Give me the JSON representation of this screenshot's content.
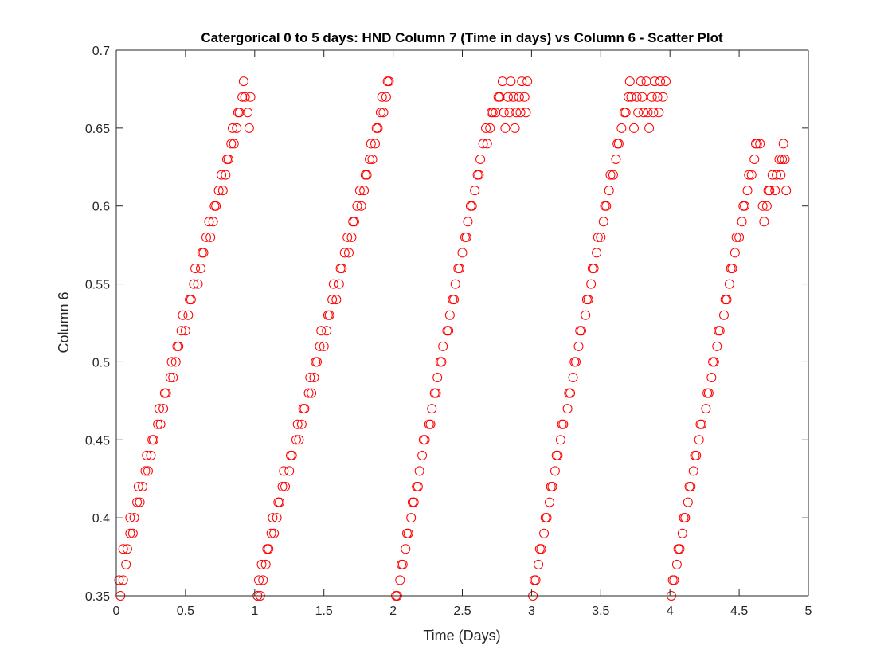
{
  "chart_data": {
    "type": "scatter",
    "title": "Catergorical 0 to 5 days: HND Column 7 (Time in days) vs Column 6 - Scatter Plot",
    "xlabel": "Time (Days)",
    "ylabel": "Column 6",
    "xlim": [
      0,
      5
    ],
    "ylim": [
      0.35,
      0.7
    ],
    "xticks": [
      0,
      0.5,
      1,
      1.5,
      2,
      2.5,
      3,
      3.5,
      4,
      4.5,
      5
    ],
    "xtick_labels": [
      "0",
      "0.5",
      "1",
      "1.5",
      "2",
      "2.5",
      "3",
      "3.5",
      "4",
      "4.5",
      "5"
    ],
    "yticks": [
      0.35,
      0.4,
      0.45,
      0.5,
      0.55,
      0.6,
      0.65,
      0.7
    ],
    "ytick_labels": [
      "0.35",
      "0.4",
      "0.45",
      "0.5",
      "0.55",
      "0.6",
      "0.65",
      "0.7"
    ],
    "grid": false,
    "marker": "open-circle",
    "marker_color": "#ff0000",
    "axis_color": "#262626",
    "series": [
      {
        "x": [
          0.03,
          0.02,
          0.05,
          0.07,
          0.05,
          0.08,
          0.1,
          0.12,
          0.1,
          0.13,
          0.15,
          0.17,
          0.16,
          0.19,
          0.21,
          0.23,
          0.22,
          0.25,
          0.27,
          0.26,
          0.3,
          0.32,
          0.31,
          0.34,
          0.36,
          0.35,
          0.39,
          0.41,
          0.4,
          0.43,
          0.45,
          0.44,
          0.47,
          0.5,
          0.48,
          0.52,
          0.54,
          0.53,
          0.56,
          0.59,
          0.57,
          0.61,
          0.63,
          0.62,
          0.65,
          0.68,
          0.67,
          0.7,
          0.72,
          0.71,
          0.74,
          0.77,
          0.76,
          0.79,
          0.81,
          0.8,
          0.83,
          0.85,
          0.84,
          0.87,
          0.89,
          0.88,
          0.91,
          0.93,
          0.92,
          0.95,
          0.97,
          0.96
        ],
        "y": [
          0.35,
          0.36,
          0.36,
          0.37,
          0.38,
          0.38,
          0.39,
          0.39,
          0.4,
          0.4,
          0.41,
          0.41,
          0.42,
          0.42,
          0.43,
          0.43,
          0.44,
          0.44,
          0.45,
          0.45,
          0.46,
          0.46,
          0.47,
          0.47,
          0.48,
          0.48,
          0.49,
          0.49,
          0.5,
          0.5,
          0.51,
          0.51,
          0.52,
          0.52,
          0.53,
          0.53,
          0.54,
          0.54,
          0.55,
          0.55,
          0.56,
          0.56,
          0.57,
          0.57,
          0.58,
          0.58,
          0.59,
          0.59,
          0.6,
          0.6,
          0.61,
          0.61,
          0.62,
          0.62,
          0.63,
          0.63,
          0.64,
          0.64,
          0.65,
          0.65,
          0.66,
          0.66,
          0.67,
          0.67,
          0.68,
          0.66,
          0.67,
          0.65
        ]
      },
      {
        "x": [
          1.02,
          1.04,
          1.03,
          1.06,
          1.05,
          1.08,
          1.1,
          1.09,
          1.12,
          1.14,
          1.13,
          1.16,
          1.18,
          1.17,
          1.2,
          1.22,
          1.21,
          1.25,
          1.27,
          1.26,
          1.3,
          1.32,
          1.31,
          1.34,
          1.36,
          1.35,
          1.39,
          1.41,
          1.4,
          1.43,
          1.45,
          1.44,
          1.47,
          1.5,
          1.48,
          1.52,
          1.54,
          1.53,
          1.56,
          1.59,
          1.57,
          1.61,
          1.63,
          1.62,
          1.65,
          1.68,
          1.67,
          1.7,
          1.72,
          1.71,
          1.74,
          1.77,
          1.76,
          1.79,
          1.81,
          1.8,
          1.83,
          1.85,
          1.84,
          1.87,
          1.89,
          1.88,
          1.91,
          1.93,
          1.92,
          1.95,
          1.97,
          1.96
        ],
        "y": [
          0.35,
          0.35,
          0.36,
          0.36,
          0.37,
          0.37,
          0.38,
          0.38,
          0.39,
          0.39,
          0.4,
          0.4,
          0.41,
          0.41,
          0.42,
          0.42,
          0.43,
          0.43,
          0.44,
          0.44,
          0.45,
          0.45,
          0.46,
          0.46,
          0.47,
          0.47,
          0.48,
          0.48,
          0.49,
          0.49,
          0.5,
          0.5,
          0.51,
          0.51,
          0.52,
          0.52,
          0.53,
          0.53,
          0.54,
          0.54,
          0.55,
          0.55,
          0.56,
          0.56,
          0.57,
          0.57,
          0.58,
          0.58,
          0.59,
          0.59,
          0.6,
          0.6,
          0.61,
          0.61,
          0.62,
          0.62,
          0.63,
          0.63,
          0.64,
          0.64,
          0.65,
          0.65,
          0.66,
          0.66,
          0.67,
          0.67,
          0.68,
          0.68
        ]
      },
      {
        "x": [
          2.03,
          2.02,
          2.05,
          2.07,
          2.06,
          2.09,
          2.11,
          2.1,
          2.13,
          2.15,
          2.14,
          2.17,
          2.19,
          2.18,
          2.21,
          2.23,
          2.22,
          2.26,
          2.28,
          2.27,
          2.3,
          2.32,
          2.31,
          2.34,
          2.36,
          2.35,
          2.39,
          2.41,
          2.4,
          2.43,
          2.45,
          2.44,
          2.47,
          2.5,
          2.48,
          2.52,
          2.54,
          2.53,
          2.56,
          2.59,
          2.57,
          2.61,
          2.63,
          2.62,
          2.65,
          2.68,
          2.67,
          2.7,
          2.72,
          2.71,
          2.74,
          2.77,
          2.76,
          2.79,
          2.81,
          2.8,
          2.83,
          2.85,
          2.84,
          2.87,
          2.89,
          2.88,
          2.91,
          2.93,
          2.92,
          2.95,
          2.97,
          2.96
        ],
        "y": [
          0.35,
          0.35,
          0.36,
          0.37,
          0.37,
          0.38,
          0.39,
          0.39,
          0.4,
          0.41,
          0.41,
          0.42,
          0.43,
          0.42,
          0.44,
          0.45,
          0.45,
          0.46,
          0.47,
          0.46,
          0.48,
          0.49,
          0.48,
          0.5,
          0.51,
          0.5,
          0.52,
          0.53,
          0.52,
          0.54,
          0.55,
          0.54,
          0.56,
          0.57,
          0.56,
          0.58,
          0.59,
          0.58,
          0.6,
          0.61,
          0.6,
          0.62,
          0.63,
          0.62,
          0.64,
          0.64,
          0.65,
          0.65,
          0.66,
          0.66,
          0.66,
          0.67,
          0.67,
          0.68,
          0.65,
          0.66,
          0.67,
          0.68,
          0.66,
          0.67,
          0.66,
          0.65,
          0.67,
          0.68,
          0.66,
          0.67,
          0.68,
          0.66
        ]
      },
      {
        "x": [
          3.01,
          3.03,
          3.02,
          3.05,
          3.07,
          3.06,
          3.09,
          3.11,
          3.1,
          3.13,
          3.15,
          3.14,
          3.17,
          3.19,
          3.18,
          3.21,
          3.23,
          3.22,
          3.26,
          3.28,
          3.27,
          3.3,
          3.32,
          3.31,
          3.34,
          3.36,
          3.35,
          3.39,
          3.41,
          3.4,
          3.43,
          3.45,
          3.44,
          3.47,
          3.5,
          3.48,
          3.52,
          3.54,
          3.53,
          3.56,
          3.59,
          3.57,
          3.61,
          3.63,
          3.62,
          3.65,
          3.68,
          3.67,
          3.7,
          3.72,
          3.71,
          3.74,
          3.77,
          3.76,
          3.79,
          3.81,
          3.8,
          3.83,
          3.85,
          3.84,
          3.87,
          3.89,
          3.88,
          3.91,
          3.93,
          3.92,
          3.95,
          3.97
        ],
        "y": [
          0.35,
          0.36,
          0.36,
          0.37,
          0.38,
          0.38,
          0.39,
          0.4,
          0.4,
          0.41,
          0.42,
          0.42,
          0.43,
          0.44,
          0.44,
          0.45,
          0.46,
          0.46,
          0.47,
          0.48,
          0.48,
          0.49,
          0.5,
          0.5,
          0.51,
          0.52,
          0.52,
          0.53,
          0.54,
          0.54,
          0.55,
          0.56,
          0.56,
          0.57,
          0.58,
          0.58,
          0.59,
          0.6,
          0.6,
          0.61,
          0.62,
          0.62,
          0.63,
          0.64,
          0.64,
          0.65,
          0.66,
          0.66,
          0.67,
          0.67,
          0.68,
          0.65,
          0.66,
          0.67,
          0.68,
          0.66,
          0.67,
          0.68,
          0.65,
          0.66,
          0.67,
          0.68,
          0.66,
          0.67,
          0.68,
          0.66,
          0.67,
          0.68
        ]
      },
      {
        "x": [
          4.01,
          4.03,
          4.02,
          4.05,
          4.07,
          4.06,
          4.09,
          4.11,
          4.1,
          4.13,
          4.15,
          4.14,
          4.17,
          4.19,
          4.18,
          4.21,
          4.23,
          4.22,
          4.26,
          4.28,
          4.27,
          4.3,
          4.32,
          4.31,
          4.34,
          4.36,
          4.35,
          4.39,
          4.41,
          4.4,
          4.43,
          4.45,
          4.44,
          4.47,
          4.5,
          4.48,
          4.52,
          4.54,
          4.53,
          4.56,
          4.59,
          4.57,
          4.61,
          4.63,
          4.62,
          4.65,
          4.68,
          4.67,
          4.7,
          4.72,
          4.71,
          4.74,
          4.77,
          4.76,
          4.79,
          4.81,
          4.8,
          4.83,
          4.82,
          4.84
        ],
        "y": [
          0.35,
          0.36,
          0.36,
          0.37,
          0.38,
          0.38,
          0.39,
          0.4,
          0.4,
          0.41,
          0.42,
          0.42,
          0.43,
          0.44,
          0.44,
          0.45,
          0.46,
          0.46,
          0.47,
          0.48,
          0.48,
          0.49,
          0.5,
          0.5,
          0.51,
          0.52,
          0.52,
          0.53,
          0.54,
          0.54,
          0.55,
          0.56,
          0.56,
          0.57,
          0.58,
          0.58,
          0.59,
          0.6,
          0.6,
          0.61,
          0.62,
          0.62,
          0.63,
          0.64,
          0.64,
          0.64,
          0.59,
          0.6,
          0.6,
          0.61,
          0.61,
          0.62,
          0.62,
          0.61,
          0.63,
          0.63,
          0.62,
          0.63,
          0.64,
          0.61
        ]
      }
    ]
  }
}
